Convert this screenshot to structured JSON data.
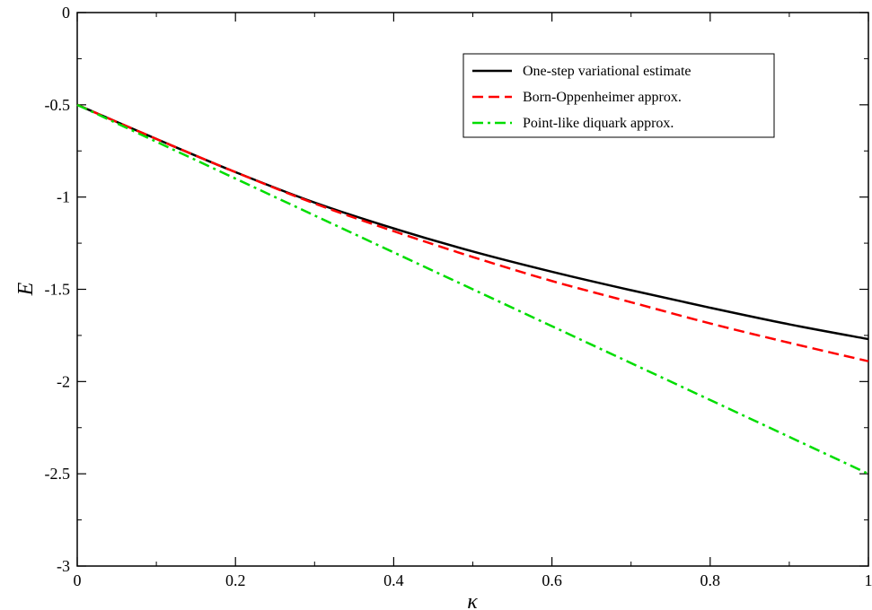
{
  "chart_data": {
    "type": "line",
    "title": "",
    "xlabel": "κ",
    "ylabel": "E",
    "xlim": [
      0,
      1
    ],
    "ylim": [
      -3,
      0
    ],
    "x_ticks": [
      "0",
      "0.2",
      "0.4",
      "0.6",
      "0.8",
      "1"
    ],
    "y_ticks": [
      "0",
      "-0.5",
      "-1",
      "-1.5",
      "-2",
      "-2.5",
      "-3"
    ],
    "x_tick_values": [
      0,
      0.2,
      0.4,
      0.6,
      0.8,
      1
    ],
    "y_tick_values": [
      0,
      -0.5,
      -1,
      -1.5,
      -2,
      -2.5,
      -3
    ],
    "grid": false,
    "legend_position": "top-right",
    "x": [
      0,
      0.1,
      0.2,
      0.3,
      0.4,
      0.5,
      0.6,
      0.7,
      0.8,
      0.9,
      1.0
    ],
    "series": [
      {
        "name": "One-step variational estimate",
        "color": "#000000",
        "dash": "solid",
        "values": [
          -0.5,
          -0.685,
          -0.865,
          -1.03,
          -1.17,
          -1.295,
          -1.405,
          -1.505,
          -1.6,
          -1.69,
          -1.77
        ]
      },
      {
        "name": "Born-Oppenheimer approx.",
        "color": "#ff0000",
        "dash": "dashed",
        "values": [
          -0.5,
          -0.685,
          -0.865,
          -1.035,
          -1.185,
          -1.325,
          -1.455,
          -1.57,
          -1.685,
          -1.79,
          -1.89
        ]
      },
      {
        "name": "Point-like diquark approx.",
        "color": "#00dd00",
        "dash": "dashdot",
        "values": [
          -0.5,
          -0.7,
          -0.9,
          -1.1,
          -1.3,
          -1.5,
          -1.7,
          -1.9,
          -2.1,
          -2.3,
          -2.5
        ]
      }
    ]
  }
}
